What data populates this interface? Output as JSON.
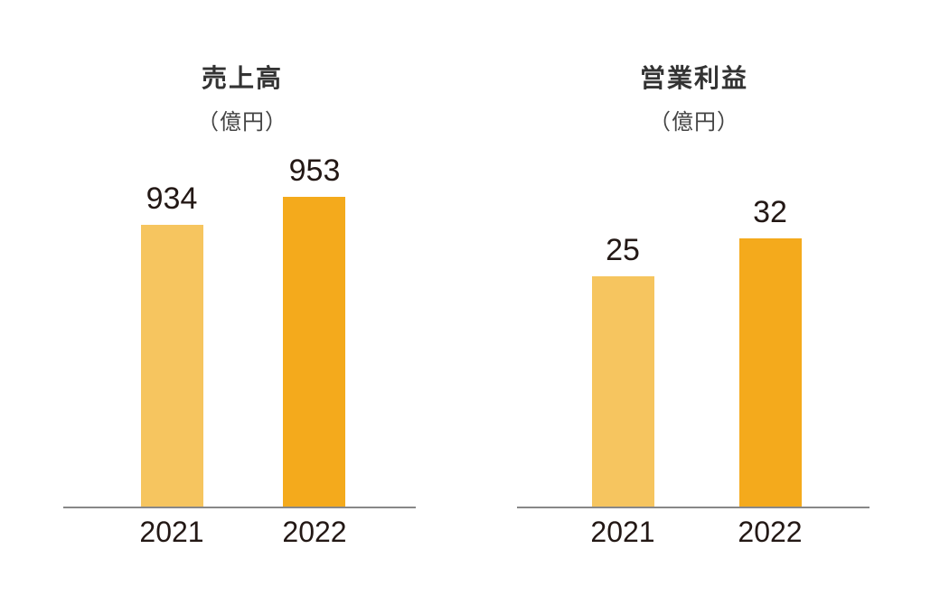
{
  "chart_data": [
    {
      "type": "bar",
      "title": "売上高",
      "unit": "（億円）",
      "categories": [
        "2021",
        "2022"
      ],
      "values": [
        934,
        953
      ],
      "colors": [
        "#F6C55F",
        "#F4AA1C"
      ]
    },
    {
      "type": "bar",
      "title": "営業利益",
      "unit": "（億円）",
      "categories": [
        "2021",
        "2022"
      ],
      "values": [
        25,
        32
      ],
      "colors": [
        "#F6C55F",
        "#F4AA1C"
      ]
    }
  ]
}
